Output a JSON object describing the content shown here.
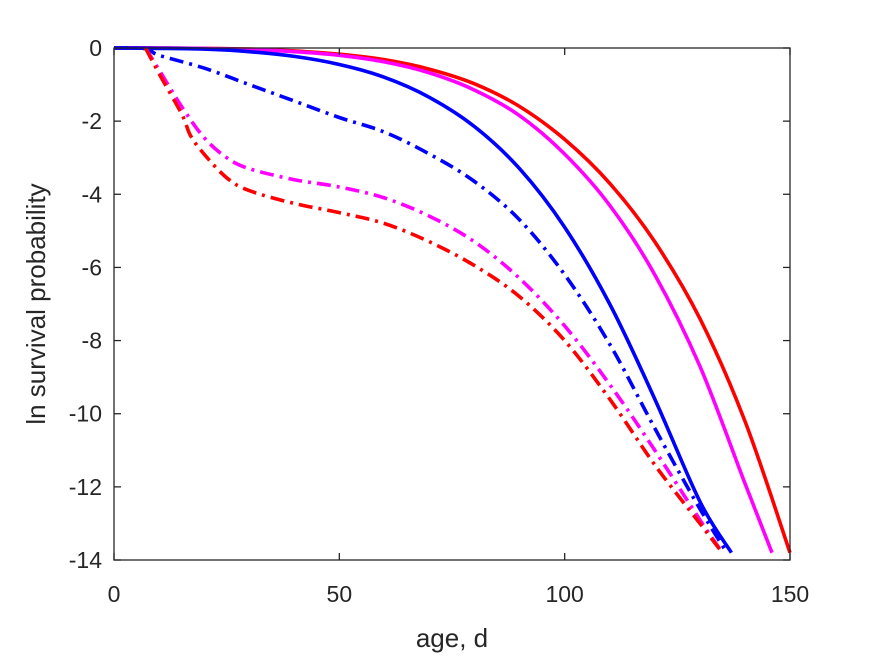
{
  "chart_data": {
    "type": "line",
    "title": "",
    "xlabel": "age, d",
    "ylabel": "ln survival probability",
    "xlim": [
      0,
      150
    ],
    "ylim": [
      -14,
      0
    ],
    "xticks": [
      0,
      50,
      100,
      150
    ],
    "yticks": [
      0,
      -2,
      -4,
      -6,
      -8,
      -10,
      -12,
      -14
    ],
    "xtick_labels": [
      "0",
      "50",
      "100",
      "150"
    ],
    "ytick_labels": [
      "0",
      "-2",
      "-4",
      "-6",
      "-8",
      "-10",
      "-12",
      "-14"
    ],
    "grid": false,
    "legend": "none",
    "series": [
      {
        "color": "#ff0000",
        "style": "solid",
        "x": [
          0,
          10,
          20,
          30,
          40,
          50,
          60,
          70,
          80,
          90,
          100,
          110,
          120,
          130,
          140,
          150
        ],
        "y": [
          0,
          0,
          -0.01,
          -0.03,
          -0.08,
          -0.17,
          -0.32,
          -0.58,
          -0.98,
          -1.6,
          -2.5,
          -3.7,
          -5.3,
          -7.4,
          -10.2,
          -13.8
        ]
      },
      {
        "color": "#ff00ff",
        "style": "solid",
        "x": [
          0,
          10,
          20,
          30,
          40,
          50,
          60,
          70,
          80,
          90,
          100,
          110,
          120,
          130,
          140,
          146
        ],
        "y": [
          0,
          0,
          -0.01,
          -0.04,
          -0.1,
          -0.2,
          -0.38,
          -0.68,
          -1.15,
          -1.85,
          -2.9,
          -4.3,
          -6.2,
          -8.7,
          -11.9,
          -13.8
        ]
      },
      {
        "color": "#0000ff",
        "style": "solid",
        "x": [
          0,
          10,
          20,
          30,
          40,
          50,
          60,
          70,
          80,
          90,
          100,
          110,
          120,
          130,
          137
        ],
        "y": [
          0,
          -0.01,
          -0.03,
          -0.1,
          -0.23,
          -0.45,
          -0.8,
          -1.35,
          -2.15,
          -3.3,
          -4.9,
          -7.0,
          -9.6,
          -12.4,
          -13.8
        ]
      },
      {
        "color": "#0000ff",
        "style": "dashdot",
        "x": [
          0,
          7,
          10,
          20,
          30,
          40,
          50,
          60,
          70,
          80,
          90,
          100,
          110,
          120,
          130,
          136
        ],
        "y": [
          0,
          -0.02,
          -0.2,
          -0.55,
          -1.0,
          -1.45,
          -1.9,
          -2.3,
          -2.9,
          -3.65,
          -4.7,
          -6.2,
          -8.1,
          -10.4,
          -12.6,
          -13.8
        ]
      },
      {
        "color": "#ff00ff",
        "style": "dashdot",
        "x": [
          7,
          10,
          15,
          20,
          25,
          30,
          40,
          50,
          60,
          70,
          80,
          90,
          100,
          110,
          120,
          130,
          135
        ],
        "y": [
          0,
          -0.6,
          -1.6,
          -2.45,
          -3.0,
          -3.3,
          -3.6,
          -3.8,
          -4.1,
          -4.6,
          -5.3,
          -6.3,
          -7.6,
          -9.2,
          -11.0,
          -12.9,
          -13.8
        ]
      },
      {
        "color": "#ff0000",
        "style": "dashdot",
        "x": [
          7,
          10,
          15,
          17,
          20,
          25,
          30,
          40,
          50,
          60,
          70,
          80,
          90,
          100,
          110,
          120,
          130,
          135
        ],
        "y": [
          0,
          -0.7,
          -1.8,
          -2.4,
          -2.9,
          -3.55,
          -3.9,
          -4.25,
          -4.5,
          -4.8,
          -5.3,
          -5.95,
          -6.8,
          -8.0,
          -9.6,
          -11.4,
          -13.0,
          -13.8
        ]
      }
    ]
  }
}
